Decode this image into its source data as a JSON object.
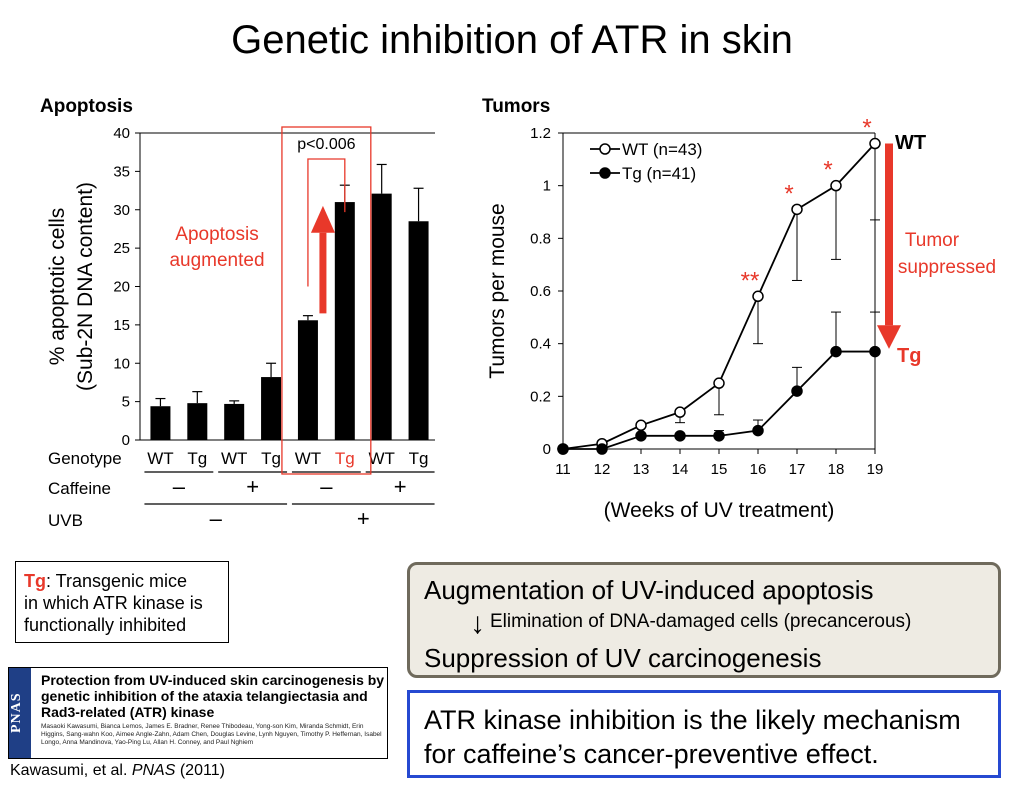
{
  "slide_title": "Genetic inhibition of ATR in skin",
  "colors": {
    "accent_red": "#e8382a",
    "bar_black": "#000000",
    "box_blue": "#2649d1",
    "box_fill": "#eeebe3"
  },
  "chart_data": [
    {
      "type": "bar",
      "title": "Apoptosis",
      "ylabel_line1": "% apoptotic cells",
      "ylabel_line2": "(Sub-2N DNA content)",
      "ylim": [
        0,
        40
      ],
      "yticks": [
        "0",
        "5",
        "10",
        "15",
        "20",
        "25",
        "30",
        "35",
        "40"
      ],
      "row_labels": {
        "genotype": "Genotype",
        "caffeine": "Caffeine",
        "uvb": "UVB"
      },
      "categories": [
        "WT",
        "Tg",
        "WT",
        "Tg",
        "WT",
        "Tg",
        "WT",
        "Tg"
      ],
      "values": [
        4.4,
        4.8,
        4.7,
        8.2,
        15.6,
        31.0,
        32.1,
        28.5
      ],
      "errors": [
        1.0,
        1.5,
        0.4,
        1.8,
        0.6,
        2.2,
        3.8,
        4.3
      ],
      "caffeine_signs": [
        "–",
        "+",
        "–",
        "+"
      ],
      "uvb_signs": [
        "–",
        "+"
      ],
      "pvalue_label": "p<0.006",
      "annotation": {
        "line1": "Apoptosis",
        "line2": "augmented"
      }
    },
    {
      "type": "line",
      "title": "Tumors",
      "xlabel": "(Weeks of UV treatment)",
      "ylabel": "Tumors per mouse",
      "x": [
        11,
        12,
        13,
        14,
        15,
        16,
        17,
        18,
        19
      ],
      "xticks": [
        "11",
        "12",
        "13",
        "14",
        "15",
        "16",
        "17",
        "18",
        "19"
      ],
      "yticks": [
        "0",
        "0.2",
        "0.4",
        "0.6",
        "0.8",
        "1",
        "1.2"
      ],
      "ylim": [
        0,
        1.2
      ],
      "series": [
        {
          "name": "WT (n=43)",
          "values": [
            0,
            0.02,
            0.09,
            0.14,
            0.25,
            0.58,
            0.91,
            1.0,
            1.16
          ],
          "errors": [
            0,
            0,
            0,
            0.04,
            0.12,
            0.18,
            0.27,
            0.28,
            0.29
          ],
          "marker": "open"
        },
        {
          "name": "Tg (n=41)",
          "values": [
            0,
            0,
            0.05,
            0.05,
            0.05,
            0.07,
            0.22,
            0.37,
            0.37
          ],
          "errors": [
            0,
            0,
            0,
            0,
            0.02,
            0.04,
            0.09,
            0.15,
            0.15
          ],
          "marker": "filled"
        }
      ],
      "significance": [
        "",
        "",
        "",
        "",
        "",
        "**",
        "*",
        "*",
        "*"
      ],
      "end_labels": {
        "wt": "WT",
        "tg": "Tg"
      },
      "annotation": {
        "line1": "Tumor",
        "line2": "suppressed"
      }
    }
  ],
  "legend_box": {
    "tg": "Tg",
    "line1_rest": ": Transgenic mice",
    "line2": "in which ATR kinase is",
    "line3": "functionally inhibited"
  },
  "paper": {
    "band_label": "PNAS",
    "title": "Protection from UV-induced skin carcinogenesis by genetic inhibition of the ataxia telangiectasia and Rad3-related (ATR) kinase",
    "authors": "Masaoki Kawasumi, Bianca Lemos, James E. Bradner, Renee Thibodeau, Yong-son Kim, Miranda Schmidt, Erin Higgins, Sang-wahn Koo, Aimee Angle-Zahn, Adam Chen, Douglas Levine, Lynh Nguyen, Timothy P. Heffernan, Isabel Longo, Anna Mandinova, Yao-Ping Lu, Allan H. Conney, and Paul Nghiem"
  },
  "citation": {
    "authors": "Kawasumi, et al. ",
    "journal": "PNAS",
    "year": " (2011)"
  },
  "mechanism": {
    "line1": "Augmentation of UV-induced apoptosis",
    "arrow": "↓",
    "middle": "Elimination of DNA-damaged cells (precancerous)",
    "line2": "Suppression of UV carcinogenesis"
  },
  "conclusion": {
    "line1": "ATR kinase inhibition is the likely mechanism",
    "line2": "for caffeine’s cancer-preventive effect."
  }
}
